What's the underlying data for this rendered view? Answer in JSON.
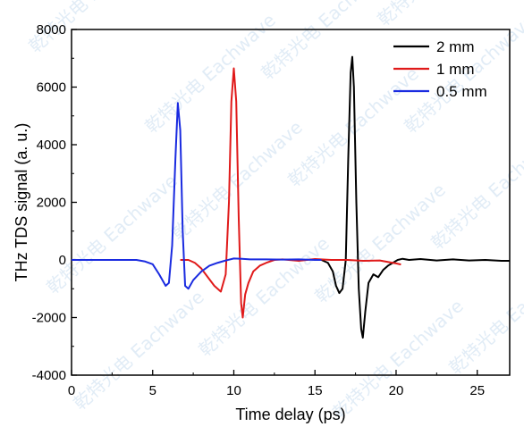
{
  "watermark": {
    "text": "乾特光电 Eachwave"
  },
  "chart_data": {
    "type": "line",
    "xlabel": "Time delay (ps)",
    "ylabel": "THz TDS signal (a. u.)",
    "xlim": [
      0,
      27
    ],
    "ylim": [
      -4000,
      8000
    ],
    "xticks": [
      0,
      5,
      10,
      15,
      20,
      25
    ],
    "yticks": [
      -4000,
      -2000,
      0,
      2000,
      4000,
      6000,
      8000
    ],
    "xtick_labels": [
      "0",
      "5",
      "10",
      "15",
      "20",
      "25"
    ],
    "ytick_labels": [
      "-4000",
      "-2000",
      "0",
      "2000",
      "4000",
      "6000",
      "8000"
    ],
    "legend_position": "top-right",
    "grid": false,
    "series": [
      {
        "name": "2 mm",
        "color": "#000000",
        "x": [
          15.4,
          15.8,
          16.1,
          16.3,
          16.5,
          16.7,
          16.9,
          17.05,
          17.2,
          17.3,
          17.4,
          17.55,
          17.7,
          17.85,
          17.95,
          18.1,
          18.3,
          18.6,
          18.9,
          19.2,
          19.5,
          19.8,
          20.1,
          20.4,
          20.8,
          21.5,
          22.5,
          23.5,
          24.5,
          25.5,
          26.5,
          27.0
        ],
        "y": [
          0,
          -100,
          -400,
          -900,
          -1150,
          -1000,
          0,
          3500,
          6500,
          7050,
          6000,
          2000,
          -1000,
          -2400,
          -2700,
          -1800,
          -800,
          -500,
          -600,
          -350,
          -200,
          -100,
          0,
          40,
          0,
          30,
          -20,
          20,
          -20,
          0,
          -30,
          -30
        ]
      },
      {
        "name": "1 mm",
        "color": "#e01a1a",
        "x": [
          6.7,
          7.2,
          7.6,
          8.0,
          8.4,
          8.8,
          9.2,
          9.5,
          9.7,
          9.85,
          10.0,
          10.15,
          10.3,
          10.45,
          10.55,
          10.7,
          10.9,
          11.2,
          11.6,
          12.0,
          12.5,
          13.0,
          14.0,
          15.0,
          16.0,
          17.0,
          18.0,
          19.0,
          19.6,
          20.0,
          20.3
        ],
        "y": [
          0,
          0,
          -100,
          -300,
          -600,
          -900,
          -1100,
          -500,
          2000,
          5500,
          6650,
          5500,
          1500,
          -1500,
          -2000,
          -1200,
          -800,
          -400,
          -200,
          -100,
          0,
          20,
          -30,
          30,
          0,
          0,
          -30,
          -20,
          -80,
          -120,
          -160
        ]
      },
      {
        "name": "0.5 mm",
        "color": "#1a2be0",
        "x": [
          0,
          1,
          2,
          3,
          4,
          4.5,
          5.0,
          5.4,
          5.8,
          6.0,
          6.2,
          6.4,
          6.55,
          6.7,
          6.85,
          7.0,
          7.2,
          7.5,
          8.0,
          8.5,
          9.0,
          9.5,
          10.0,
          10.5,
          11.0,
          12.0,
          13.0,
          14.0,
          15.0,
          15.4
        ],
        "y": [
          0,
          0,
          0,
          0,
          0,
          -50,
          -150,
          -500,
          -900,
          -800,
          500,
          3500,
          5450,
          4500,
          1000,
          -900,
          -1000,
          -700,
          -400,
          -200,
          -100,
          -20,
          50,
          40,
          20,
          20,
          10,
          20,
          0,
          0
        ]
      }
    ]
  }
}
